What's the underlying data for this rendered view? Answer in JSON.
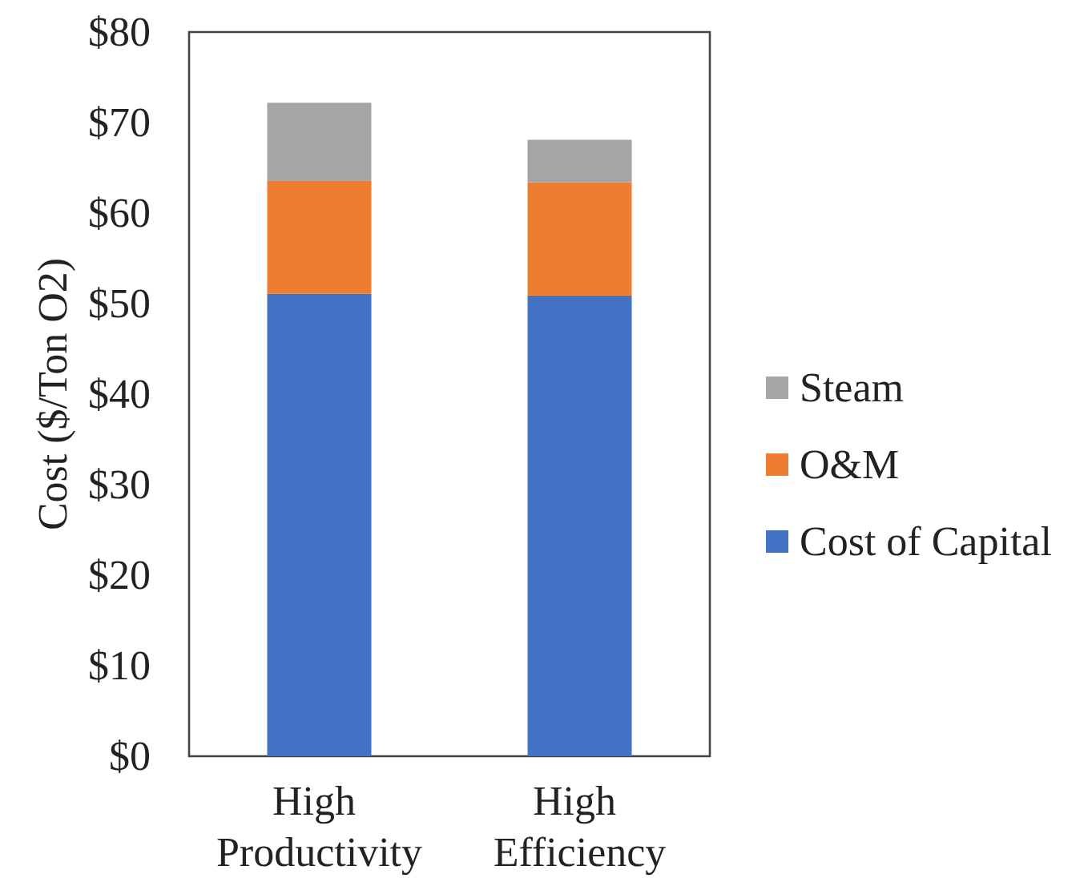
{
  "chart_data": {
    "type": "bar",
    "stacked": true,
    "ylabel": "Cost ($/Ton O2)",
    "categories": [
      "High Productivity",
      "High Efficiency"
    ],
    "series": [
      {
        "name": "Cost of Capital",
        "color": "#4472c4",
        "values": [
          51.1,
          50.9
        ]
      },
      {
        "name": "O&M",
        "color": "#ed7d31",
        "values": [
          12.5,
          12.5
        ]
      },
      {
        "name": "Steam",
        "color": "#a5a5a5",
        "values": [
          8.6,
          4.7
        ]
      }
    ],
    "ylim": [
      0,
      80
    ],
    "yticks": [
      {
        "value": 0,
        "label": "$0"
      },
      {
        "value": 10,
        "label": "$10"
      },
      {
        "value": 20,
        "label": "$20"
      },
      {
        "value": 30,
        "label": "$30"
      },
      {
        "value": 40,
        "label": "$40"
      },
      {
        "value": 50,
        "label": "$50"
      },
      {
        "value": 60,
        "label": "$60"
      },
      {
        "value": 70,
        "label": "$70"
      },
      {
        "value": 80,
        "label": "$80"
      }
    ],
    "grid": false,
    "legend": "right"
  }
}
